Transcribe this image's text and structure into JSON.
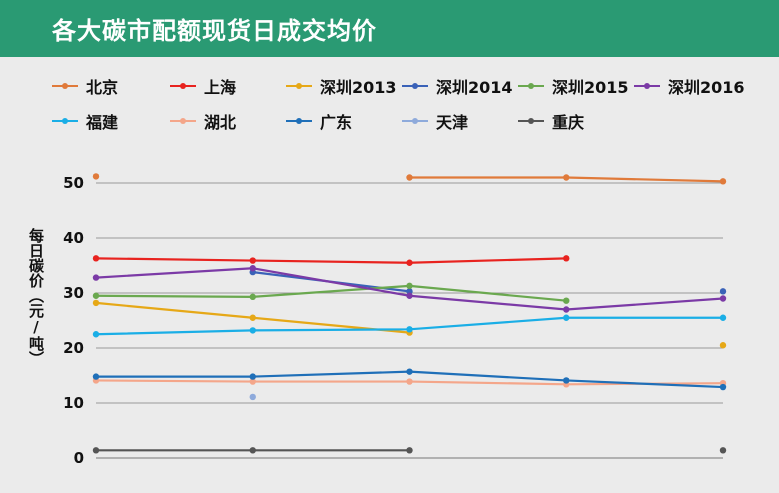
{
  "header": {
    "title": "各大碳市配额现货日成交均价"
  },
  "chart_data": {
    "type": "line",
    "title": "各大碳市配额现货日成交均价",
    "ylabel": "每日碳价（元/吨）",
    "xlabel": "",
    "ylim": [
      0,
      50
    ],
    "yticks": [
      0,
      10,
      20,
      30,
      40,
      50
    ],
    "grid": true,
    "legend_position": "top",
    "x": [
      1,
      2,
      3,
      4,
      5
    ],
    "series": [
      {
        "name": "北京",
        "color": "#e07a3a",
        "values": [
          51.2,
          null,
          51.0,
          51.0,
          50.3
        ]
      },
      {
        "name": "上海",
        "color": "#e8231f",
        "values": [
          36.3,
          35.9,
          35.5,
          36.3,
          null
        ]
      },
      {
        "name": "深圳2013",
        "color": "#e6a817",
        "values": [
          28.2,
          25.5,
          22.8,
          null,
          20.5
        ]
      },
      {
        "name": "深圳2014",
        "color": "#3a62b8",
        "values": [
          null,
          33.8,
          30.3,
          null,
          30.3
        ]
      },
      {
        "name": "深圳2015",
        "color": "#6aa84f",
        "values": [
          29.5,
          29.3,
          31.3,
          28.6,
          null
        ]
      },
      {
        "name": "深圳2016",
        "color": "#7b3aa6",
        "values": [
          32.8,
          34.5,
          29.5,
          27.0,
          29.0
        ]
      },
      {
        "name": "福建",
        "color": "#1aaee6",
        "values": [
          22.5,
          23.2,
          23.4,
          25.5,
          25.5
        ]
      },
      {
        "name": "湖北",
        "color": "#f4a68a",
        "values": [
          14.1,
          13.9,
          13.9,
          13.4,
          13.6
        ]
      },
      {
        "name": "广东",
        "color": "#1f6fb8",
        "values": [
          14.8,
          14.8,
          15.7,
          14.1,
          12.9
        ]
      },
      {
        "name": "天津",
        "color": "#8eaadb",
        "values": [
          null,
          11.1,
          null,
          null,
          null
        ]
      },
      {
        "name": "重庆",
        "color": "#555555",
        "values": [
          1.4,
          1.4,
          1.4,
          null,
          1.4
        ]
      }
    ]
  }
}
